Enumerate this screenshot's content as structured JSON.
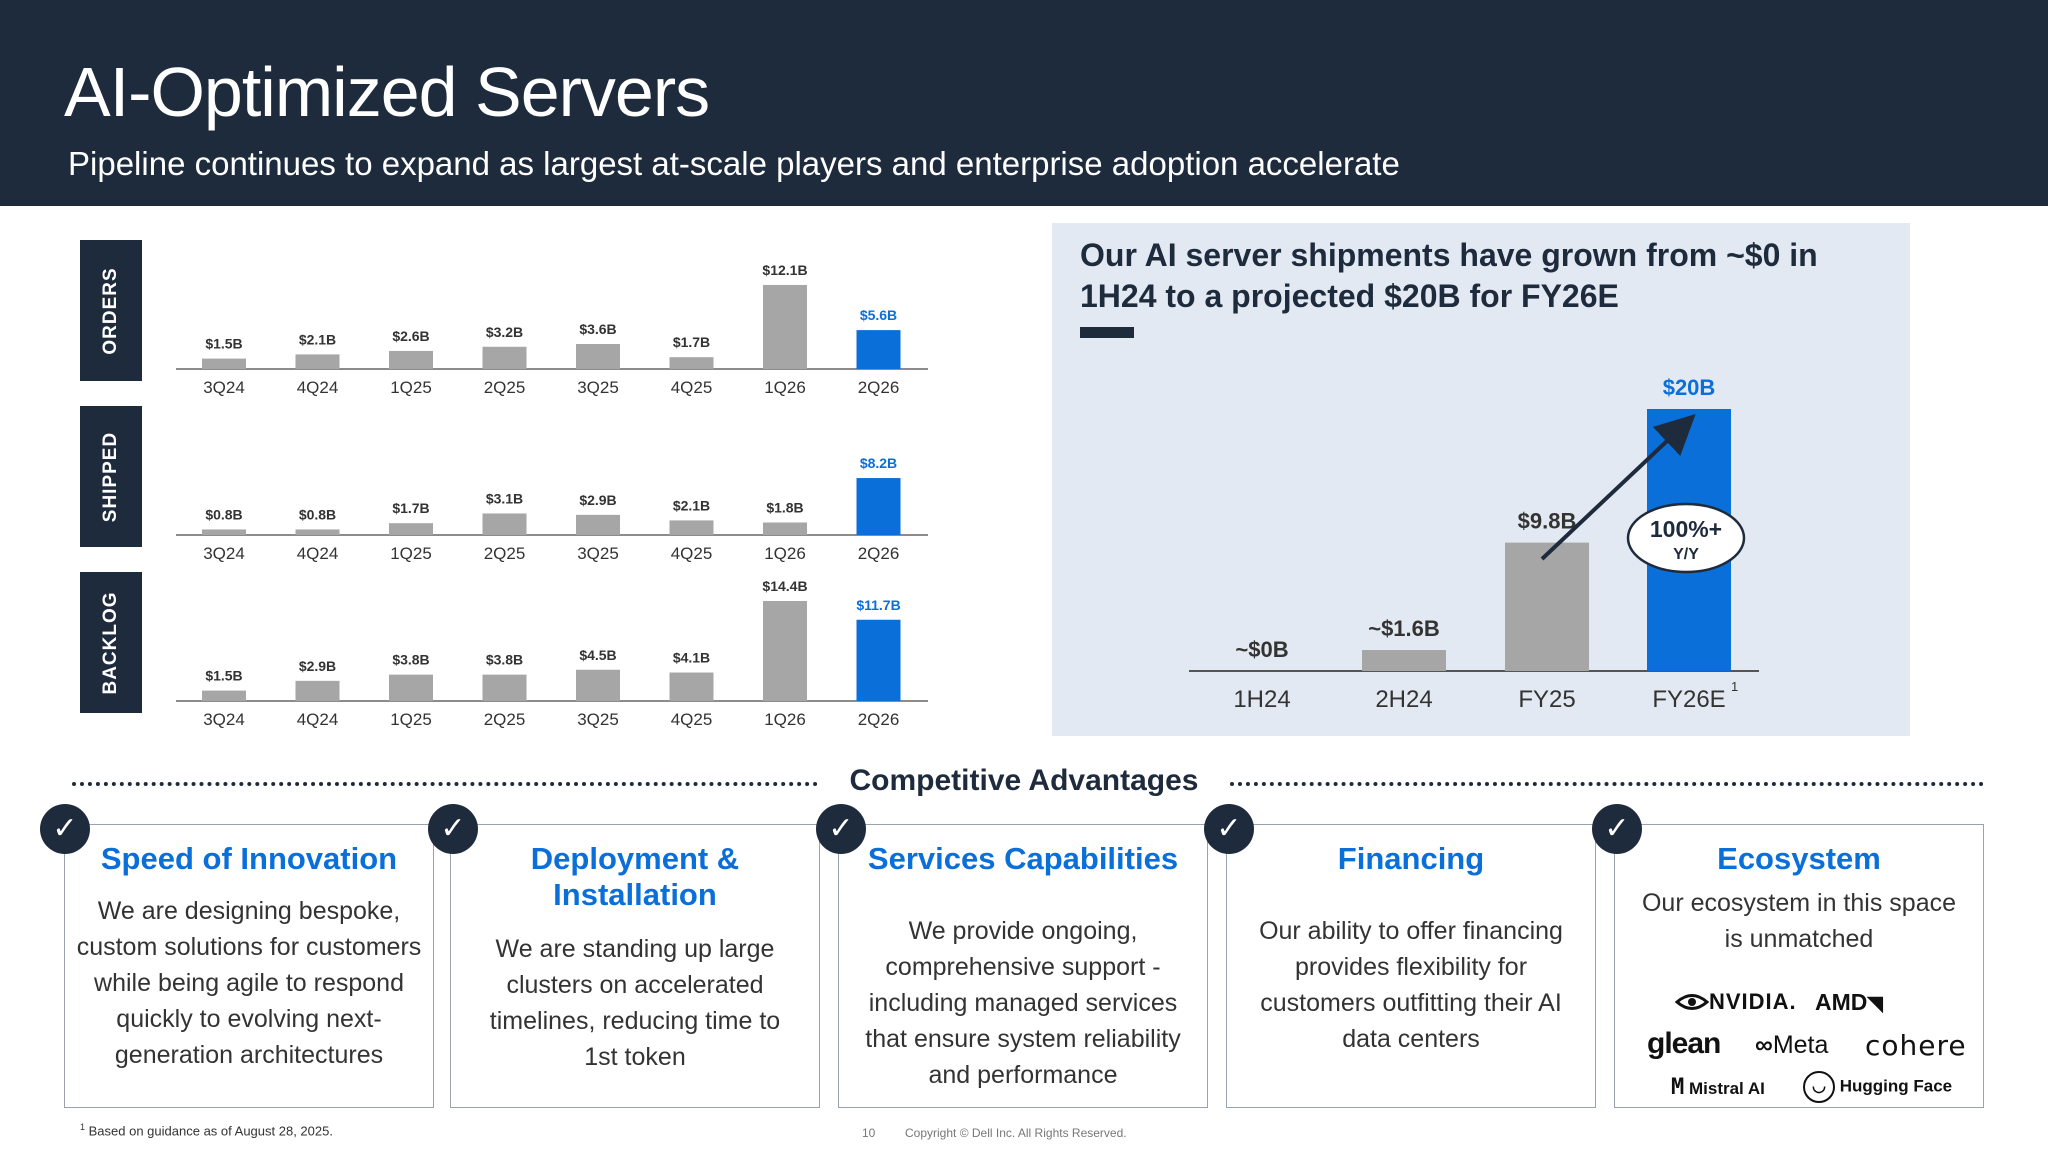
{
  "header": {
    "title": "AI-Optimized Servers",
    "subtitle": "Pipeline continues to expand as largest at-scale players and enterprise adoption accelerate"
  },
  "colors": {
    "navy": "#1e2b3c",
    "gray_bar": "#a6a6a6",
    "blue_bar": "#0a6fd8",
    "panel_bg": "#e3e9f2"
  },
  "chart_data": [
    {
      "type": "bar",
      "title": "ORDERS",
      "categories": [
        "3Q24",
        "4Q24",
        "1Q25",
        "2Q25",
        "3Q25",
        "4Q25",
        "1Q26",
        "2Q26"
      ],
      "values": [
        1.5,
        2.1,
        2.6,
        3.2,
        3.6,
        1.7,
        12.1,
        5.6
      ],
      "labels": [
        "$1.5B",
        "$2.1B",
        "$2.6B",
        "$3.2B",
        "$3.6B",
        "$1.7B",
        "$12.1B",
        "$5.6B"
      ],
      "highlight_index": 7
    },
    {
      "type": "bar",
      "title": "SHIPPED",
      "categories": [
        "3Q24",
        "4Q24",
        "1Q25",
        "2Q25",
        "3Q25",
        "4Q25",
        "1Q26",
        "2Q26"
      ],
      "values": [
        0.8,
        0.8,
        1.7,
        3.1,
        2.9,
        2.1,
        1.8,
        8.2
      ],
      "labels": [
        "$0.8B",
        "$0.8B",
        "$1.7B",
        "$3.1B",
        "$2.9B",
        "$2.1B",
        "$1.8B",
        "$8.2B"
      ],
      "highlight_index": 7
    },
    {
      "type": "bar",
      "title": "BACKLOG",
      "categories": [
        "3Q24",
        "4Q24",
        "1Q25",
        "2Q25",
        "3Q25",
        "4Q25",
        "1Q26",
        "2Q26"
      ],
      "values": [
        1.5,
        2.9,
        3.8,
        3.8,
        4.5,
        4.1,
        14.4,
        11.7
      ],
      "labels": [
        "$1.5B",
        "$2.9B",
        "$3.8B",
        "$3.8B",
        "$4.5B",
        "$4.1B",
        "$14.4B",
        "$11.7B"
      ],
      "highlight_index": 7
    },
    {
      "type": "bar",
      "title": "Our AI server shipments have grown from ~$0 in 1H24 to a projected $20B for FY26E",
      "categories": [
        "1H24",
        "2H24",
        "FY25",
        "FY26E"
      ],
      "category_superscripts": [
        "",
        "",
        "",
        "1"
      ],
      "values": [
        0,
        1.6,
        9.8,
        20
      ],
      "labels": [
        "~$0B",
        "~$1.6B",
        "$9.8B",
        "$20B"
      ],
      "highlight_index": 3,
      "annotation": {
        "line1": "100%+",
        "line2": "Y/Y"
      }
    }
  ],
  "advantages": {
    "title": "Competitive Advantages",
    "cards": [
      {
        "title": "Speed of Innovation",
        "text": "We are designing bespoke, custom solutions for customers while being agile to respond quickly to evolving next-generation architectures"
      },
      {
        "title": "Deployment & Installation",
        "text": "We are standing up large clusters on accelerated timelines, reducing time to 1st token"
      },
      {
        "title": "Services Capabilities",
        "text": "We provide ongoing, comprehensive support - including managed services that ensure system reliability and performance"
      },
      {
        "title": "Financing",
        "text": "Our ability to offer financing provides flexibility for customers outfitting their AI data centers"
      },
      {
        "title": "Ecosystem",
        "text": "Our ecosystem in this space is unmatched"
      }
    ],
    "check_glyph": "✓",
    "logos": {
      "nvidia": "NVIDIA.",
      "amd": "AMD",
      "glean": "glean",
      "meta": "Meta",
      "cohere": "cohere",
      "mistral": "Mistral AI",
      "huggingface": "Hugging Face"
    }
  },
  "footer": {
    "footnote_mark": "1",
    "footnote": "Based on guidance as of August 28, 2025.",
    "page": "10",
    "copyright": "Copyright © Dell Inc. All Rights Reserved."
  }
}
